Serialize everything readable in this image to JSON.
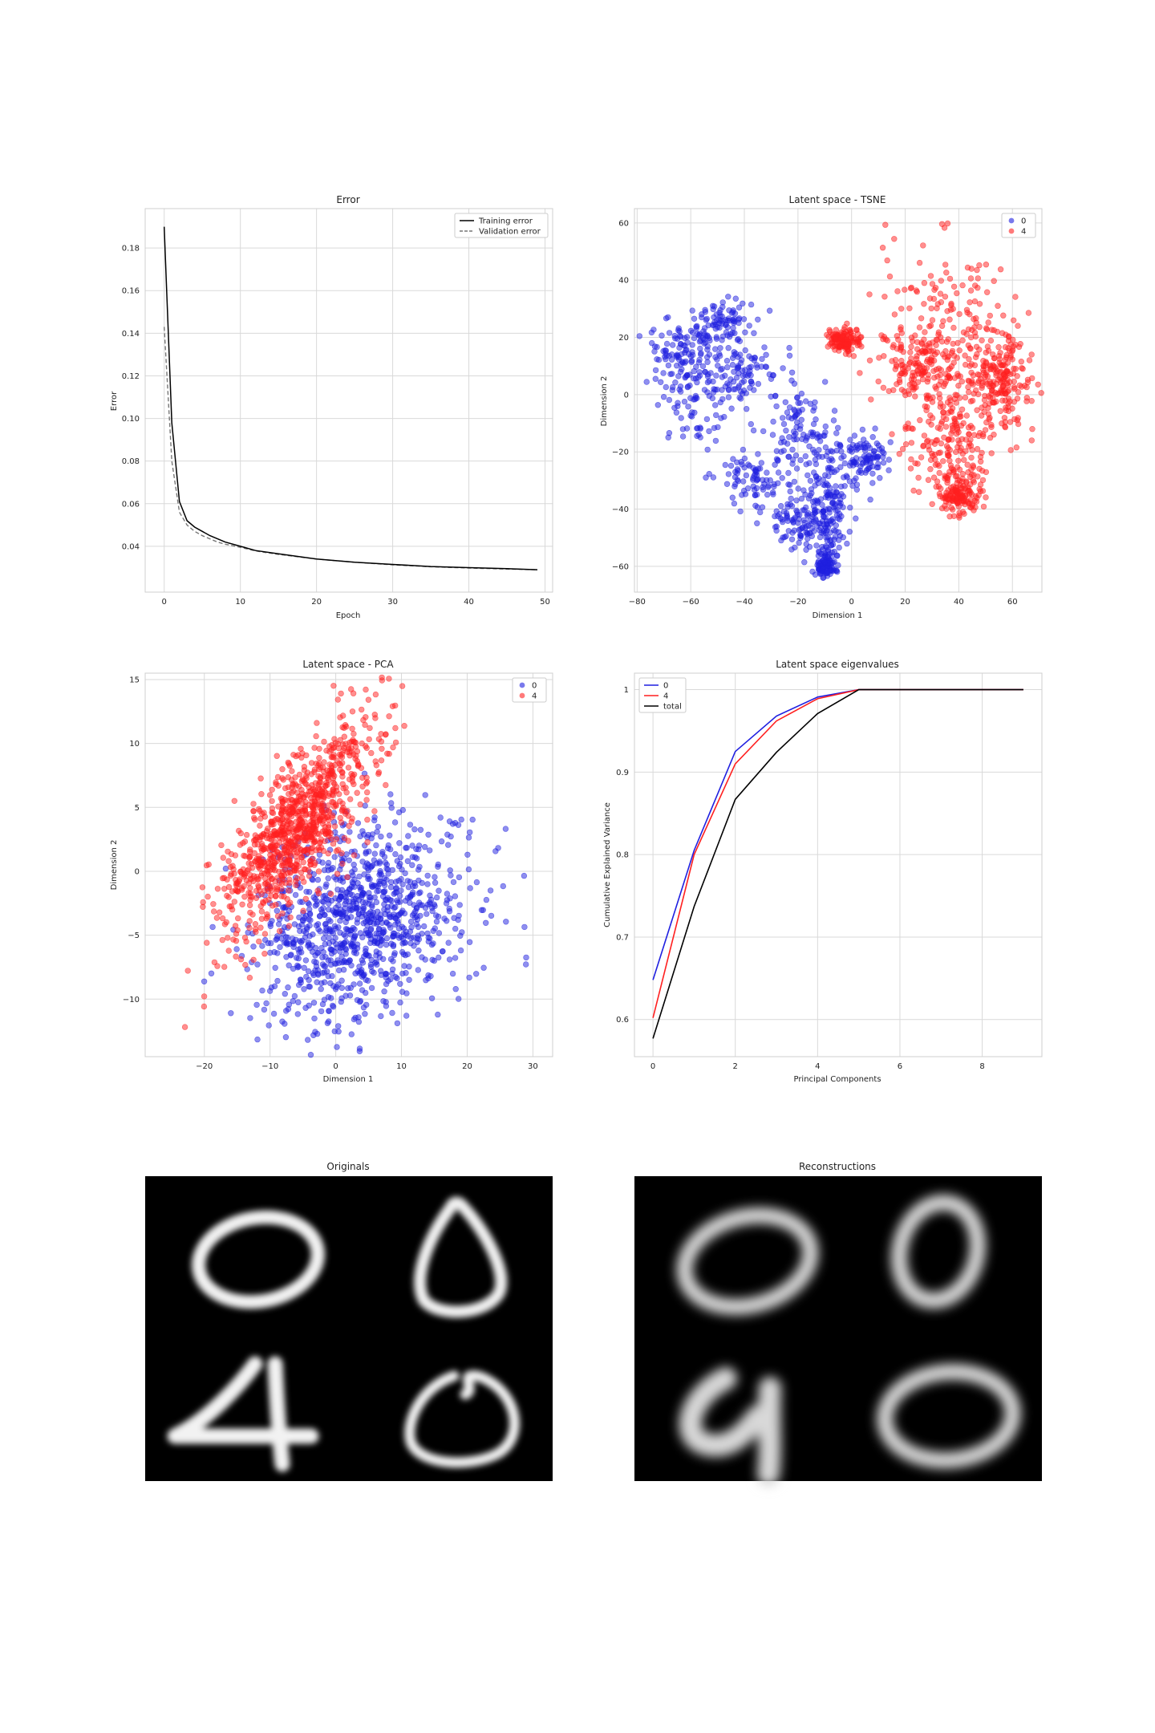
{
  "colors": {
    "blue": "#1f1fe0",
    "red": "#ff1f1f",
    "black": "#000000",
    "grid": "#d9d9d9"
  },
  "chart_data": [
    {
      "type": "line",
      "title": "Error",
      "xlabel": "Epoch",
      "ylabel": "Error",
      "xlim": [
        -2.5,
        51
      ],
      "ylim": [
        0.0185,
        0.1985
      ],
      "xticks": [
        0,
        10,
        20,
        30,
        40,
        50
      ],
      "yticks": [
        0.04,
        0.06,
        0.08,
        0.1,
        0.12,
        0.14,
        0.16,
        0.18
      ],
      "ytick_labels": [
        "0.04",
        "0.06",
        "0.08",
        "0.10",
        "0.12",
        "0.14",
        "0.16",
        "0.18"
      ],
      "legend": "top-right",
      "grid": true,
      "series": [
        {
          "name": "Training error",
          "style": "solid",
          "x": [
            0,
            1,
            2,
            3,
            4,
            5,
            6,
            7,
            8,
            10,
            12,
            15,
            20,
            25,
            30,
            35,
            40,
            45,
            49
          ],
          "y": [
            0.19,
            0.098,
            0.061,
            0.052,
            0.049,
            0.047,
            0.045,
            0.0435,
            0.042,
            0.04,
            0.038,
            0.0365,
            0.034,
            0.0325,
            0.0315,
            0.0305,
            0.03,
            0.0295,
            0.029
          ]
        },
        {
          "name": "Validation error",
          "style": "dashed",
          "x": [
            0,
            1,
            2,
            3,
            4,
            5,
            6,
            7,
            8,
            10,
            12,
            15,
            20,
            25,
            30,
            35,
            40,
            45,
            49
          ],
          "y": [
            0.143,
            0.08,
            0.056,
            0.05,
            0.047,
            0.045,
            0.0435,
            0.042,
            0.041,
            0.0395,
            0.0378,
            0.0362,
            0.034,
            0.0325,
            0.0313,
            0.0304,
            0.0298,
            0.0293,
            0.029
          ]
        }
      ]
    },
    {
      "type": "scatter",
      "title": "Latent space - TSNE",
      "xlabel": "Dimension 1",
      "ylabel": "Dimension 2",
      "xlim": [
        -81,
        71
      ],
      "ylim": [
        -69,
        65
      ],
      "xticks": [
        -80,
        -60,
        -40,
        -20,
        0,
        20,
        40,
        60
      ],
      "yticks": [
        -60,
        -40,
        -20,
        0,
        20,
        40,
        60
      ],
      "legend": "top-right",
      "grid": true,
      "series": [
        {
          "name": "0",
          "color": "blue",
          "approx_points": 1000,
          "clusters": [
            [
              -65,
              15,
              6,
              6
            ],
            [
              -57,
              0,
              8,
              10
            ],
            [
              -48,
              25,
              5,
              4
            ],
            [
              -40,
              8,
              8,
              6
            ],
            [
              -35,
              -30,
              8,
              6
            ],
            [
              -20,
              -12,
              7,
              8
            ],
            [
              -20,
              -45,
              6,
              5
            ],
            [
              -10,
              -30,
              5,
              8
            ],
            [
              -8,
              -45,
              4,
              7
            ],
            [
              -10,
              -60,
              2,
              2
            ],
            [
              5,
              -22,
              4,
              4
            ]
          ]
        },
        {
          "name": "4",
          "color": "red",
          "approx_points": 980,
          "clusters": [
            [
              38,
              28,
              12,
              14
            ],
            [
              45,
              0,
              12,
              14
            ],
            [
              36,
              -18,
              8,
              9
            ],
            [
              25,
              10,
              7,
              7
            ],
            [
              -3,
              19,
              3,
              2
            ],
            [
              55,
              5,
              5,
              8
            ],
            [
              40,
              -35,
              4,
              3
            ]
          ]
        }
      ]
    },
    {
      "type": "scatter",
      "title": "Latent space - PCA",
      "xlabel": "Dimension 1",
      "ylabel": "Dimension 2",
      "xlim": [
        -29,
        33
      ],
      "ylim": [
        -14.5,
        15.5
      ],
      "xticks": [
        -20,
        -10,
        0,
        10,
        20,
        30
      ],
      "yticks": [
        -10,
        -5,
        0,
        5,
        10,
        15
      ],
      "legend": "top-right",
      "grid": true,
      "series": [
        {
          "name": "0",
          "color": "blue",
          "approx_points": 1000,
          "center": [
            4,
            -4
          ],
          "spread": [
            8,
            3.8
          ]
        },
        {
          "name": "4",
          "color": "red",
          "approx_points": 980,
          "center": [
            -6,
            3.5
          ],
          "spread": [
            6,
            2.6
          ],
          "slope": 0.55
        }
      ]
    },
    {
      "type": "line",
      "title": "Latent space eigenvalues",
      "xlabel": "Principal Components",
      "ylabel": "Cumulative Explained Variance",
      "xlim": [
        -0.45,
        9.45
      ],
      "ylim": [
        0.555,
        1.02
      ],
      "xticks": [
        0,
        2,
        4,
        6,
        8
      ],
      "yticks": [
        0.6,
        0.7,
        0.8,
        0.9,
        1.0
      ],
      "legend": "top-left",
      "grid": true,
      "series": [
        {
          "name": "0",
          "color": "blue",
          "x": [
            0,
            1,
            2,
            3,
            4,
            5,
            6,
            7,
            8,
            9
          ],
          "y": [
            0.648,
            0.805,
            0.925,
            0.968,
            0.991,
            1.0,
            1.0,
            1.0,
            1.0,
            1.0
          ]
        },
        {
          "name": "4",
          "color": "red",
          "x": [
            0,
            1,
            2,
            3,
            4,
            5,
            6,
            7,
            8,
            9
          ],
          "y": [
            0.602,
            0.8,
            0.91,
            0.962,
            0.989,
            1.0,
            1.0,
            1.0,
            1.0,
            1.0
          ]
        },
        {
          "name": "total",
          "color": "black",
          "x": [
            0,
            1,
            2,
            3,
            4,
            5,
            6,
            7,
            8,
            9
          ],
          "y": [
            0.577,
            0.737,
            0.867,
            0.924,
            0.971,
            1.0,
            1.0,
            1.0,
            1.0,
            1.0
          ]
        }
      ]
    }
  ],
  "images": {
    "originals_title": "Originals",
    "reconstructions_title": "Reconstructions"
  }
}
